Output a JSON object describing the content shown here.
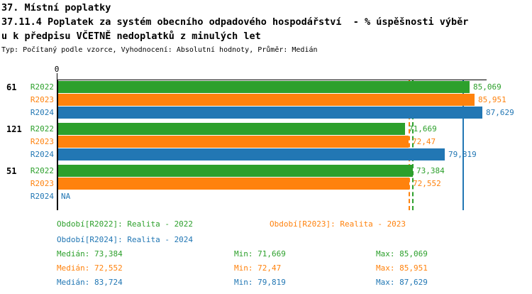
{
  "header": {
    "title_line1": "37. Místní poplatky",
    "title_line2": "37.11.4 Poplatek za systém obecního odpadového hospodářství  - % úspěšnosti výběr",
    "title_line3": "u k předpisu VČETNĚ nedoplatků z minulých let",
    "meta": "Typ: Počítaný podle vzorce, Vyhodnocení: Absolutní hodnoty, Průměr: Medián"
  },
  "colors": {
    "R2022": "#2da02c",
    "R2023": "#ff820d",
    "R2024": "#2277b4",
    "axis": "#000000",
    "background": "#ffffff"
  },
  "chart_data": {
    "type": "bar",
    "orientation": "horizontal",
    "xlim": [
      0,
      88.5
    ],
    "zero_tick_label": "0",
    "series_order": [
      "R2022",
      "R2023",
      "R2024"
    ],
    "groups": [
      {
        "label": "61",
        "bars": [
          {
            "series": "R2022",
            "value": 85.069,
            "display": "85,069"
          },
          {
            "series": "R2023",
            "value": 85.951,
            "display": "85,951"
          },
          {
            "series": "R2024",
            "value": 87.629,
            "display": "87,629"
          }
        ]
      },
      {
        "label": "121",
        "bars": [
          {
            "series": "R2022",
            "value": 71.669,
            "display": "71,669"
          },
          {
            "series": "R2023",
            "value": 72.47,
            "display": "72,47"
          },
          {
            "series": "R2024",
            "value": 79.819,
            "display": "79,819"
          }
        ]
      },
      {
        "label": "51",
        "bars": [
          {
            "series": "R2022",
            "value": 73.384,
            "display": "73,384"
          },
          {
            "series": "R2023",
            "value": 72.552,
            "display": "72,552"
          },
          {
            "series": "R2024",
            "value": null,
            "display": "NA"
          }
        ]
      }
    ],
    "reference_lines": [
      {
        "series": "R2023",
        "value": 72.552,
        "style": "dashed"
      },
      {
        "series": "R2022",
        "value": 73.384,
        "style": "dashed"
      },
      {
        "series": "R2024",
        "value": 83.724,
        "style": "solid"
      }
    ]
  },
  "legend": [
    {
      "series": "R2022",
      "label": "Období[R2022]: Realita - 2022"
    },
    {
      "series": "R2023",
      "label": "Období[R2023]: Realita - 2023"
    },
    {
      "series": "R2024",
      "label": "Období[R2024]: Realita - 2024"
    }
  ],
  "stats": [
    {
      "series": "R2022",
      "median": "Medián: 73,384",
      "min": "Min: 71,669",
      "max": "Max: 85,069"
    },
    {
      "series": "R2023",
      "median": "Medián: 72,552",
      "min": "Min: 72,47",
      "max": "Max: 85,951"
    },
    {
      "series": "R2024",
      "median": "Medián: 83,724",
      "min": "Min: 79,819",
      "max": "Max: 87,629"
    }
  ]
}
